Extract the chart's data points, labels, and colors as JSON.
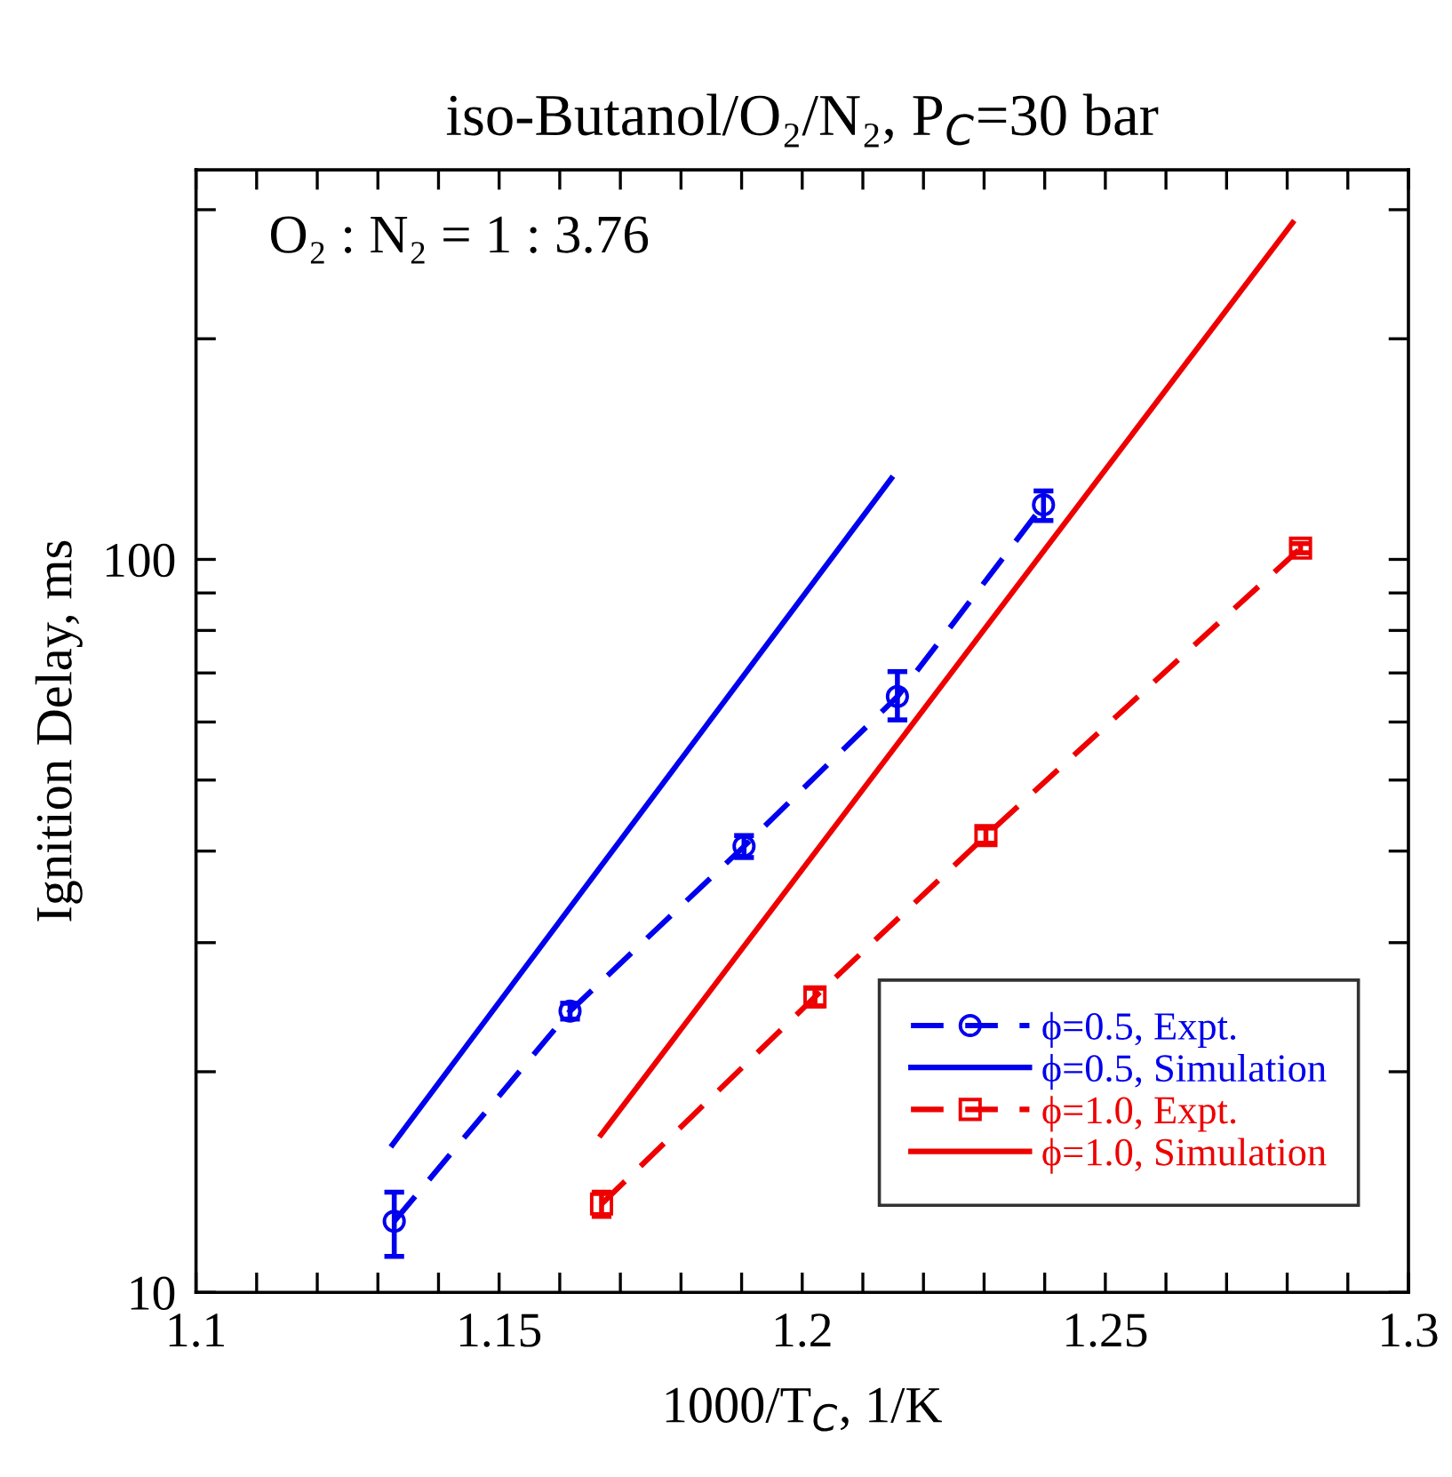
{
  "chart_data": {
    "type": "line",
    "title": "iso-Butanol/O₂/N₂, P$_{C}$=30 bar",
    "xlabel": "1000/T$_{C}$, 1/K",
    "ylabel": "Ignition Delay, ms",
    "annotations": [
      "O₂ : N₂ = 1 : 3.76"
    ],
    "log": "y",
    "xlim": [
      1.1,
      1.3
    ],
    "ylim": [
      10,
      340
    ],
    "xticks": [
      1.1,
      {
        "value": 1.11,
        "label": null
      },
      {
        "value": 1.12,
        "label": null
      },
      {
        "value": 1.13,
        "label": null
      },
      {
        "value": 1.14,
        "label": null
      },
      1.15,
      {
        "value": 1.16,
        "label": null
      },
      {
        "value": 1.17,
        "label": null
      },
      {
        "value": 1.18,
        "label": null
      },
      {
        "value": 1.19,
        "label": null
      },
      1.2,
      {
        "value": 1.21,
        "label": null
      },
      {
        "value": 1.22,
        "label": null
      },
      {
        "value": 1.23,
        "label": null
      },
      {
        "value": 1.24,
        "label": null
      },
      1.25,
      {
        "value": 1.26,
        "label": null
      },
      {
        "value": 1.27,
        "label": null
      },
      {
        "value": 1.28,
        "label": null
      },
      {
        "value": 1.29,
        "label": null
      },
      1.3
    ],
    "yticks": [
      10,
      {
        "value": 20,
        "label": null
      },
      {
        "value": 30,
        "label": null
      },
      {
        "value": 40,
        "label": null
      },
      {
        "value": 50,
        "label": null
      },
      {
        "value": 60,
        "label": null
      },
      {
        "value": 70,
        "label": null
      },
      {
        "value": 80,
        "label": null
      },
      {
        "value": 90,
        "label": null
      },
      100,
      {
        "value": 200,
        "label": null
      },
      {
        "value": 300,
        "label": null
      }
    ],
    "grid": false,
    "legend": "bottom right",
    "series": [
      {
        "name": "ϕ=0.5, Expt.",
        "color": "#0000ee",
        "marker": "circle",
        "line_style": "dashed",
        "x": [
          1.1327,
          1.1617,
          1.1904,
          1.2157,
          1.2398
        ],
        "values": [
          12.5,
          24.2,
          40.6,
          65.0,
          118.7
        ],
        "errors": [
          [
            11.2,
            13.7
          ],
          0.6,
          [
            39.2,
            42.0
          ],
          [
            60.4,
            70.3
          ],
          [
            113,
            124
          ]
        ]
      },
      {
        "name": "ϕ=0.5, Simulation",
        "color": "#0000ee",
        "marker": "none",
        "line_style": "solid",
        "x": [
          1.1324,
          1.2147
        ],
        "values": [
          15.9,
          129
        ]
      },
      {
        "name": "ϕ=1.0, Expt.",
        "color": "#ee0000",
        "marker": "square",
        "line_style": "dashed",
        "x": [
          1.1669,
          1.2021,
          1.2303,
          1.2822
        ],
        "values": [
          13.2,
          25.3,
          42.0,
          103.6
        ],
        "errors": [
          0.5,
          0.7,
          1.0,
          1.5
        ]
      },
      {
        "name": "ϕ=1.0, Simulation",
        "color": "#ee0000",
        "marker": "none",
        "line_style": "solid",
        "x": [
          1.1668,
          1.2809
        ],
        "values": [
          16.4,
          288
        ]
      }
    ]
  }
}
